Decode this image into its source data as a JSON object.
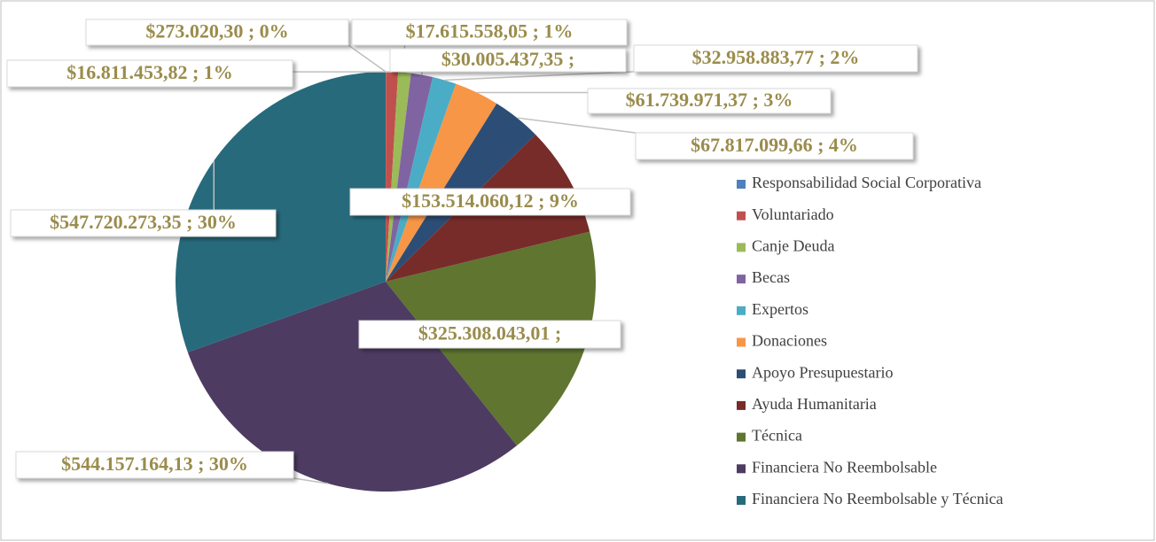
{
  "chart_data": {
    "type": "pie",
    "categories": [
      "Responsabilidad Social Corporativa",
      "Voluntariado",
      "Canje Deuda",
      "Becas",
      "Expertos",
      "Donaciones",
      "Apoyo Presupuestario",
      "Ayuda Humanitaria",
      "Técnica",
      "Financiera No Reembolsable",
      "Financiera No Reembolsable y Técnica"
    ],
    "values": [
      273020.3,
      16811453.82,
      17615558.05,
      30005437.35,
      32958883.77,
      61739971.37,
      67817099.66,
      153514060.12,
      325308043.01,
      544157164.13,
      547720273.35
    ],
    "value_labels": [
      "$273.020,30 ; 0%",
      "$16.811.453,82 ; 1%",
      "$17.615.558,05 ; 1%",
      "$30.005.437,35 ;",
      "$32.958.883,77 ; 2%",
      "$61.739.971,37 ; 3%",
      "$67.817.099,66 ; 4%",
      "$153.514.060,12 ; 9%",
      "$325.308.043,01 ;",
      "$544.157.164,13 ; 30%",
      "$547.720.273,35 ; 30%"
    ],
    "colors": [
      "#4f81bd",
      "#c0504d",
      "#9bbb59",
      "#8064a2",
      "#4bacc6",
      "#f79646",
      "#2c4d75",
      "#772c2a",
      "#5f7530",
      "#4d3b62",
      "#276a7c"
    ],
    "legend": "right"
  }
}
